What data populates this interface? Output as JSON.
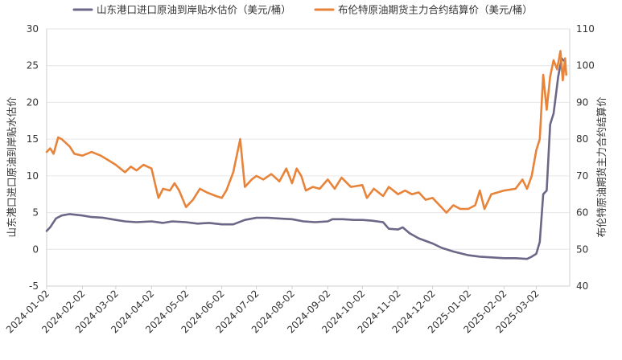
{
  "chart_data": {
    "type": "line",
    "title": "",
    "x_labels": [
      "2024-01-02",
      "2024-02-02",
      "2024-03-02",
      "2024-04-02",
      "2024-05-02",
      "2024-06-02",
      "2024-07-02",
      "2024-08-02",
      "2024-09-02",
      "2024-10-02",
      "2024-11-02",
      "2024-12-02",
      "2025-01-02",
      "2025-02-02",
      "2025-03-02"
    ],
    "y_left": {
      "label": "山东港口进口原油到岸贴水估价",
      "range": [
        -5,
        30
      ],
      "ticks": [
        -5,
        0,
        5,
        10,
        15,
        20,
        25,
        30
      ]
    },
    "y_right": {
      "label": "布伦特原油期货主力合约结算价",
      "range": [
        40,
        110
      ],
      "ticks": [
        40,
        50,
        60,
        70,
        80,
        90,
        100,
        110
      ]
    },
    "grid": "horizontal",
    "legend_position": "top",
    "series": [
      {
        "name": "山东港口进口原油到岸贴水估价（美元/桶）",
        "axis": "left",
        "color": "#6B6787",
        "points": [
          [
            "2024-01-02",
            2.5
          ],
          [
            "2024-01-05",
            3.0
          ],
          [
            "2024-01-10",
            4.2
          ],
          [
            "2024-01-15",
            4.6
          ],
          [
            "2024-01-22",
            4.8
          ],
          [
            "2024-02-02",
            4.6
          ],
          [
            "2024-02-10",
            4.4
          ],
          [
            "2024-02-20",
            4.3
          ],
          [
            "2024-03-02",
            4.0
          ],
          [
            "2024-03-10",
            3.8
          ],
          [
            "2024-03-20",
            3.7
          ],
          [
            "2024-04-02",
            3.8
          ],
          [
            "2024-04-12",
            3.6
          ],
          [
            "2024-04-20",
            3.8
          ],
          [
            "2024-05-02",
            3.7
          ],
          [
            "2024-05-12",
            3.5
          ],
          [
            "2024-05-22",
            3.6
          ],
          [
            "2024-06-02",
            3.4
          ],
          [
            "2024-06-12",
            3.4
          ],
          [
            "2024-06-22",
            4.0
          ],
          [
            "2024-07-02",
            4.3
          ],
          [
            "2024-07-12",
            4.3
          ],
          [
            "2024-07-22",
            4.2
          ],
          [
            "2024-08-02",
            4.1
          ],
          [
            "2024-08-12",
            3.8
          ],
          [
            "2024-08-22",
            3.7
          ],
          [
            "2024-09-02",
            3.8
          ],
          [
            "2024-09-06",
            4.1
          ],
          [
            "2024-09-15",
            4.1
          ],
          [
            "2024-09-25",
            4.0
          ],
          [
            "2024-10-02",
            4.0
          ],
          [
            "2024-10-10",
            3.9
          ],
          [
            "2024-10-20",
            3.7
          ],
          [
            "2024-10-25",
            2.8
          ],
          [
            "2024-11-02",
            2.7
          ],
          [
            "2024-11-06",
            3.0
          ],
          [
            "2024-11-12",
            2.2
          ],
          [
            "2024-11-20",
            1.5
          ],
          [
            "2024-12-02",
            0.8
          ],
          [
            "2024-12-10",
            0.2
          ],
          [
            "2024-12-20",
            -0.3
          ],
          [
            "2025-01-02",
            -0.8
          ],
          [
            "2025-01-12",
            -1.0
          ],
          [
            "2025-01-22",
            -1.1
          ],
          [
            "2025-02-02",
            -1.2
          ],
          [
            "2025-02-12",
            -1.2
          ],
          [
            "2025-02-22",
            -1.3
          ],
          [
            "2025-02-26",
            -1.0
          ],
          [
            "2025-03-02",
            -0.6
          ],
          [
            "2025-03-05",
            1.0
          ],
          [
            "2025-03-08",
            7.5
          ],
          [
            "2025-03-11",
            8.0
          ],
          [
            "2025-03-14",
            17.0
          ],
          [
            "2025-03-17",
            18.5
          ],
          [
            "2025-03-21",
            23.5
          ],
          [
            "2025-03-24",
            26.0
          ],
          [
            "2025-03-27",
            25.5
          ]
        ]
      },
      {
        "name": "布伦特原油期货主力合约结算价（美元/桶）",
        "axis": "right",
        "color": "#E8833A",
        "points": [
          [
            "2024-01-02",
            76.5
          ],
          [
            "2024-01-05",
            77.5
          ],
          [
            "2024-01-08",
            76.0
          ],
          [
            "2024-01-12",
            80.5
          ],
          [
            "2024-01-15",
            80.0
          ],
          [
            "2024-01-22",
            78.0
          ],
          [
            "2024-01-26",
            76.0
          ],
          [
            "2024-02-02",
            75.5
          ],
          [
            "2024-02-10",
            76.5
          ],
          [
            "2024-02-18",
            75.5
          ],
          [
            "2024-02-26",
            74.0
          ],
          [
            "2024-03-02",
            73.0
          ],
          [
            "2024-03-06",
            72.0
          ],
          [
            "2024-03-10",
            71.0
          ],
          [
            "2024-03-15",
            72.5
          ],
          [
            "2024-03-20",
            71.5
          ],
          [
            "2024-03-26",
            73.0
          ],
          [
            "2024-04-02",
            72.0
          ],
          [
            "2024-04-08",
            64.0
          ],
          [
            "2024-04-12",
            66.5
          ],
          [
            "2024-04-18",
            66.0
          ],
          [
            "2024-04-22",
            68.0
          ],
          [
            "2024-04-26",
            66.0
          ],
          [
            "2024-05-02",
            61.5
          ],
          [
            "2024-05-08",
            63.5
          ],
          [
            "2024-05-14",
            66.5
          ],
          [
            "2024-05-20",
            65.5
          ],
          [
            "2024-05-28",
            64.5
          ],
          [
            "2024-06-02",
            64.0
          ],
          [
            "2024-06-06",
            66.0
          ],
          [
            "2024-06-12",
            71.0
          ],
          [
            "2024-06-18",
            80.0
          ],
          [
            "2024-06-22",
            67.0
          ],
          [
            "2024-06-28",
            69.0
          ],
          [
            "2024-07-02",
            70.0
          ],
          [
            "2024-07-08",
            69.0
          ],
          [
            "2024-07-15",
            70.5
          ],
          [
            "2024-07-22",
            68.5
          ],
          [
            "2024-07-28",
            72.0
          ],
          [
            "2024-08-02",
            68.0
          ],
          [
            "2024-08-06",
            72.0
          ],
          [
            "2024-08-10",
            70.0
          ],
          [
            "2024-08-14",
            66.0
          ],
          [
            "2024-08-20",
            67.0
          ],
          [
            "2024-08-26",
            66.5
          ],
          [
            "2024-09-02",
            69.0
          ],
          [
            "2024-09-08",
            66.5
          ],
          [
            "2024-09-14",
            69.5
          ],
          [
            "2024-09-22",
            67.0
          ],
          [
            "2024-10-02",
            67.5
          ],
          [
            "2024-10-06",
            64.0
          ],
          [
            "2024-10-12",
            66.5
          ],
          [
            "2024-10-20",
            64.5
          ],
          [
            "2024-10-25",
            67.0
          ],
          [
            "2024-11-02",
            65.0
          ],
          [
            "2024-11-08",
            66.0
          ],
          [
            "2024-11-14",
            65.0
          ],
          [
            "2024-11-20",
            65.5
          ],
          [
            "2024-11-26",
            63.5
          ],
          [
            "2024-12-02",
            64.0
          ],
          [
            "2024-12-08",
            62.0
          ],
          [
            "2024-12-14",
            60.0
          ],
          [
            "2024-12-20",
            62.0
          ],
          [
            "2024-12-26",
            61.0
          ],
          [
            "2025-01-02",
            61.0
          ],
          [
            "2025-01-08",
            62.0
          ],
          [
            "2025-01-12",
            66.0
          ],
          [
            "2025-01-16",
            61.0
          ],
          [
            "2025-01-22",
            65.0
          ],
          [
            "2025-02-02",
            66.0
          ],
          [
            "2025-02-12",
            66.5
          ],
          [
            "2025-02-18",
            69.0
          ],
          [
            "2025-02-22",
            66.5
          ],
          [
            "2025-02-26",
            70.0
          ],
          [
            "2025-03-02",
            77.0
          ],
          [
            "2025-03-05",
            80.0
          ],
          [
            "2025-03-08",
            97.5
          ],
          [
            "2025-03-11",
            88.0
          ],
          [
            "2025-03-14",
            97.0
          ],
          [
            "2025-03-17",
            101.5
          ],
          [
            "2025-03-20",
            99.0
          ],
          [
            "2025-03-23",
            104.0
          ],
          [
            "2025-03-25",
            96.0
          ],
          [
            "2025-03-27",
            102.0
          ],
          [
            "2025-03-28",
            97.5
          ]
        ]
      }
    ]
  }
}
